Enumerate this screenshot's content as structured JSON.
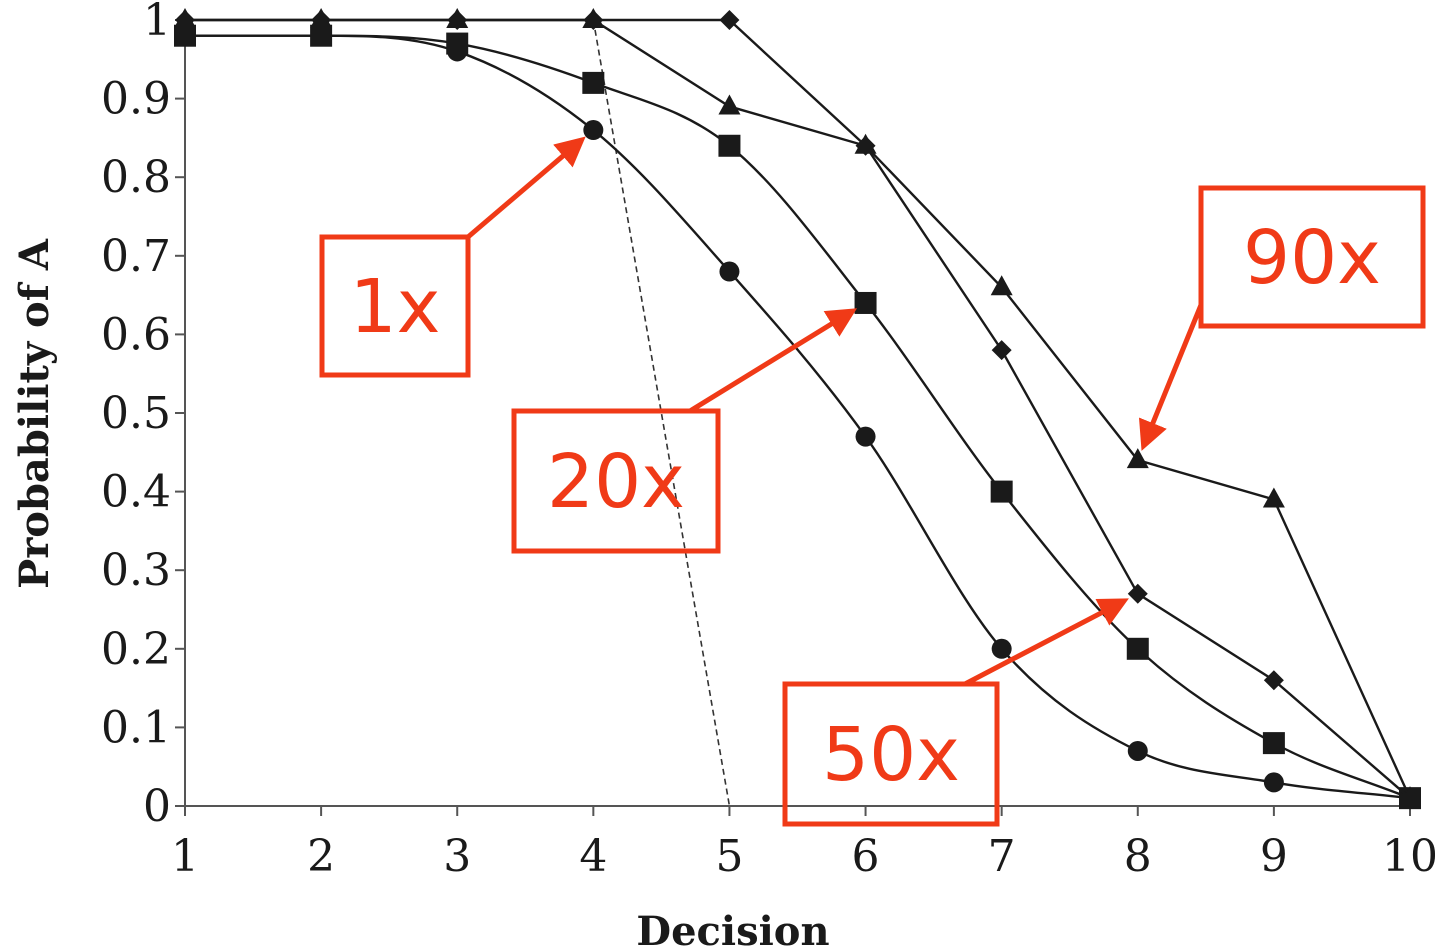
{
  "chart_data": {
    "type": "line",
    "xlabel": "Decision",
    "ylabel": "Probability of A",
    "x": [
      1,
      2,
      3,
      4,
      5,
      6,
      7,
      8,
      9,
      10
    ],
    "xlim": [
      1,
      10
    ],
    "ylim": [
      0,
      1
    ],
    "x_ticks": [
      "1",
      "2",
      "3",
      "4",
      "5",
      "6",
      "7",
      "8",
      "9",
      "10"
    ],
    "y_ticks": [
      "0",
      "0.1",
      "0.2",
      "0.3",
      "0.4",
      "0.5",
      "0.6",
      "0.7",
      "0.8",
      "0.9",
      "1"
    ],
    "grid": false,
    "series": [
      {
        "marker": "circle",
        "values": [
          0.98,
          0.98,
          0.96,
          0.86,
          0.68,
          0.47,
          0.2,
          0.07,
          0.03,
          0.01
        ]
      },
      {
        "marker": "square",
        "values": [
          0.98,
          0.98,
          0.97,
          0.92,
          0.84,
          0.64,
          0.4,
          0.2,
          0.08,
          0.01
        ]
      },
      {
        "marker": "diamond",
        "values": [
          1.0,
          1.0,
          1.0,
          1.0,
          1.0,
          0.84,
          0.58,
          0.27,
          0.16,
          0.01
        ]
      },
      {
        "marker": "triangle",
        "values": [
          1.0,
          1.0,
          1.0,
          1.0,
          0.89,
          0.84,
          0.66,
          0.44,
          0.39,
          0.01
        ]
      }
    ],
    "reference_line": {
      "style": "dashed",
      "x": [
        4,
        5
      ],
      "values": [
        1.0,
        0.0
      ]
    },
    "annotations": [
      {
        "text": "1x",
        "series": 0,
        "point_x": 4
      },
      {
        "text": "20x",
        "series": 1,
        "point_x": 6
      },
      {
        "text": "50x",
        "series": 2,
        "point_x": 8
      },
      {
        "text": "90x",
        "series": 3,
        "point_x": 8
      }
    ],
    "annotation_color": "#f03a17",
    "series_color": "#1a1a1a"
  }
}
